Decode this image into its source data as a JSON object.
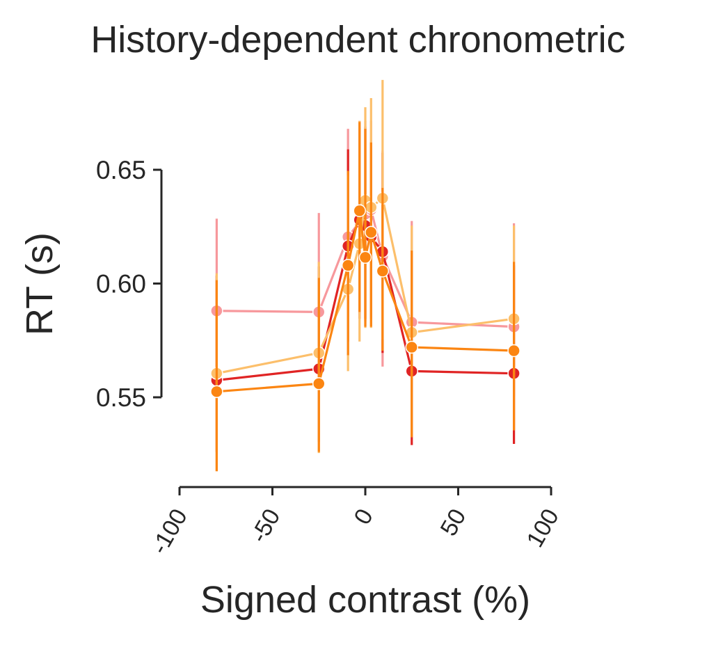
{
  "chart_data": {
    "type": "line",
    "title": "History-dependent chronometric",
    "xlabel": "Signed contrast (%)",
    "ylabel": "RT (s)",
    "xlim": [
      -100,
      100
    ],
    "ylim": [
      0.55,
      0.65
    ],
    "xticks": [
      -100,
      -50,
      0,
      50,
      100
    ],
    "xtick_labels": [
      "-100",
      "-50",
      "0",
      "50",
      "100"
    ],
    "yticks": [
      0.55,
      0.6,
      0.65
    ],
    "ytick_labels": [
      "0.55",
      "0.60",
      "0.65"
    ],
    "grid": false,
    "x": [
      -80,
      -25,
      -9.3,
      -3.1,
      0,
      3.1,
      9.3,
      25,
      80
    ],
    "series": [
      {
        "color": "#f7989c",
        "values": [
          0.588,
          0.5875,
          0.6205,
          0.627,
          0.6305,
          0.6325,
          0.612,
          0.583,
          0.581
        ],
        "err_low": [
          0.5565,
          0.5565,
          0.5855,
          0.5865,
          0.5835,
          0.5855,
          0.5635,
          0.5525,
          0.5505
        ],
        "err_high": [
          0.6285,
          0.631,
          0.668,
          0.6715,
          0.6715,
          0.6715,
          0.6585,
          0.6275,
          0.6265
        ]
      },
      {
        "color": "#e02424",
        "values": [
          0.5575,
          0.5625,
          0.6165,
          0.628,
          0.6255,
          0.6205,
          0.614,
          0.5615,
          0.5605
        ],
        "err_low": [
          0.526,
          0.5305,
          0.5745,
          0.5845,
          0.5845,
          0.5845,
          0.5695,
          0.529,
          0.5295
        ],
        "err_high": [
          0.6035,
          0.6075,
          0.659,
          0.6685,
          0.669,
          0.662,
          0.6575,
          0.6145,
          0.608
        ]
      },
      {
        "color": "#fcbf6b",
        "values": [
          0.5605,
          0.5695,
          0.5975,
          0.6175,
          0.6365,
          0.6335,
          0.6375,
          0.5785,
          0.5845
        ],
        "err_low": [
          0.5175,
          0.5255,
          0.5615,
          0.5745,
          0.5805,
          0.5805,
          0.5755,
          0.5325,
          0.5355
        ],
        "err_high": [
          0.6045,
          0.6095,
          0.6475,
          0.6715,
          0.6775,
          0.6815,
          0.6895,
          0.6255,
          0.6255
        ]
      },
      {
        "color": "#fb8512",
        "values": [
          0.5525,
          0.556,
          0.608,
          0.632,
          0.6115,
          0.6225,
          0.6055,
          0.572,
          0.5705
        ],
        "err_low": [
          0.5175,
          0.526,
          0.5685,
          0.5875,
          0.581,
          0.581,
          0.5705,
          0.5325,
          0.5355
        ],
        "err_high": [
          0.6015,
          0.6025,
          0.6495,
          0.671,
          0.668,
          0.662,
          0.642,
          0.6145,
          0.6095
        ]
      }
    ]
  }
}
